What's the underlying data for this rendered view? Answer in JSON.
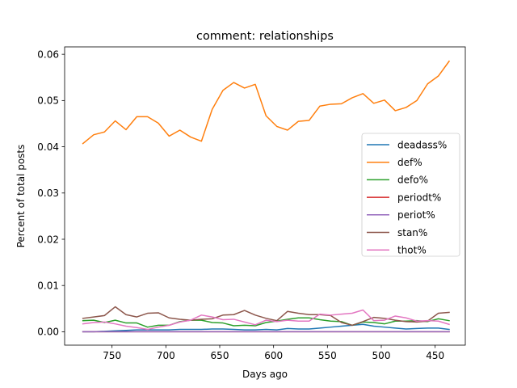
{
  "chart_data": {
    "type": "line",
    "title": "comment: relationships",
    "xlabel": "Days ago",
    "ylabel": "Percent of total posts",
    "x_inverted": true,
    "xlim": [
      794,
      422
    ],
    "ylim": [
      -0.0029,
      0.0616
    ],
    "xticks": [
      750,
      700,
      650,
      600,
      550,
      500,
      450
    ],
    "yticks": [
      0.0,
      0.01,
      0.02,
      0.03,
      0.04,
      0.05,
      0.06
    ],
    "ytick_labels": [
      "0.00",
      "0.01",
      "0.02",
      "0.03",
      "0.04",
      "0.05",
      "0.06"
    ],
    "grid": false,
    "legend_position": "center-right",
    "x": [
      777,
      767,
      757,
      747,
      737,
      727,
      717,
      707,
      697,
      687,
      677,
      667,
      657,
      647,
      637,
      627,
      617,
      607,
      597,
      587,
      577,
      567,
      557,
      547,
      537,
      527,
      517,
      507,
      497,
      487,
      477,
      467,
      457,
      447,
      437
    ],
    "series": [
      {
        "name": "deadass%",
        "color": "#1f77b4",
        "values": [
          0.0,
          0.0,
          0.0001,
          0.0002,
          0.0003,
          0.0004,
          0.0004,
          0.0004,
          0.0004,
          0.0005,
          0.0005,
          0.0005,
          0.0006,
          0.0006,
          0.0005,
          0.0004,
          0.0004,
          0.0005,
          0.0004,
          0.0007,
          0.0006,
          0.0006,
          0.0008,
          0.001,
          0.0012,
          0.0014,
          0.0016,
          0.0012,
          0.001,
          0.0008,
          0.0006,
          0.0007,
          0.0008,
          0.0008,
          0.0005
        ]
      },
      {
        "name": "def%",
        "color": "#ff7f0e",
        "values": [
          0.0407,
          0.0426,
          0.0432,
          0.0456,
          0.0437,
          0.0465,
          0.0465,
          0.0451,
          0.0423,
          0.0436,
          0.0421,
          0.0412,
          0.0481,
          0.0522,
          0.0539,
          0.0527,
          0.0535,
          0.0467,
          0.0444,
          0.0436,
          0.0455,
          0.0457,
          0.0488,
          0.0492,
          0.0493,
          0.0506,
          0.0515,
          0.0494,
          0.0501,
          0.0478,
          0.0485,
          0.05,
          0.0536,
          0.0553,
          0.0585
        ]
      },
      {
        "name": "defo%",
        "color": "#2ca02c",
        "values": [
          0.0024,
          0.0025,
          0.002,
          0.0025,
          0.0019,
          0.0019,
          0.001,
          0.0014,
          0.0014,
          0.0022,
          0.0025,
          0.0025,
          0.002,
          0.0019,
          0.0013,
          0.0014,
          0.0013,
          0.002,
          0.0023,
          0.0027,
          0.003,
          0.003,
          0.0026,
          0.0023,
          0.0022,
          0.0014,
          0.0021,
          0.002,
          0.0017,
          0.0023,
          0.0023,
          0.0024,
          0.0022,
          0.0028,
          0.0024
        ]
      },
      {
        "name": "periodt%",
        "color": "#d62728",
        "values": [
          0,
          0,
          0,
          0,
          0,
          0,
          0,
          0,
          0,
          0,
          0,
          0,
          0,
          0,
          0,
          0,
          0,
          0,
          0,
          0,
          0,
          0,
          0,
          0,
          0,
          0,
          0,
          0,
          0,
          0,
          0,
          0,
          0,
          0,
          0
        ]
      },
      {
        "name": "periot%",
        "color": "#9467bd",
        "values": [
          0,
          0,
          0,
          0,
          0,
          0,
          0,
          0,
          0,
          0,
          0,
          0,
          0,
          0,
          0,
          0,
          0,
          0,
          0,
          0,
          0,
          0,
          0,
          0,
          0,
          0,
          0,
          0,
          0,
          0,
          0,
          0,
          0,
          0,
          0
        ]
      },
      {
        "name": "stan%",
        "color": "#8c564b",
        "values": [
          0.0029,
          0.0032,
          0.0035,
          0.0054,
          0.0037,
          0.0032,
          0.004,
          0.0041,
          0.003,
          0.0027,
          0.0025,
          0.0027,
          0.0028,
          0.0036,
          0.0037,
          0.0046,
          0.0036,
          0.0029,
          0.0024,
          0.0044,
          0.004,
          0.0037,
          0.0037,
          0.0035,
          0.002,
          0.0014,
          0.0022,
          0.0031,
          0.0029,
          0.0025,
          0.0022,
          0.0021,
          0.0023,
          0.004,
          0.0042
        ]
      },
      {
        "name": "thot%",
        "color": "#e377c2",
        "values": [
          0.0017,
          0.002,
          0.0021,
          0.0017,
          0.0012,
          0.0009,
          0.0005,
          0.001,
          0.0014,
          0.0021,
          0.0025,
          0.0036,
          0.0032,
          0.0026,
          0.0027,
          0.0021,
          0.0015,
          0.0025,
          0.0022,
          0.0025,
          0.0023,
          0.0023,
          0.0038,
          0.0036,
          0.0038,
          0.004,
          0.0047,
          0.0024,
          0.0025,
          0.0034,
          0.003,
          0.0023,
          0.0024,
          0.0023,
          0.0016
        ]
      }
    ]
  }
}
